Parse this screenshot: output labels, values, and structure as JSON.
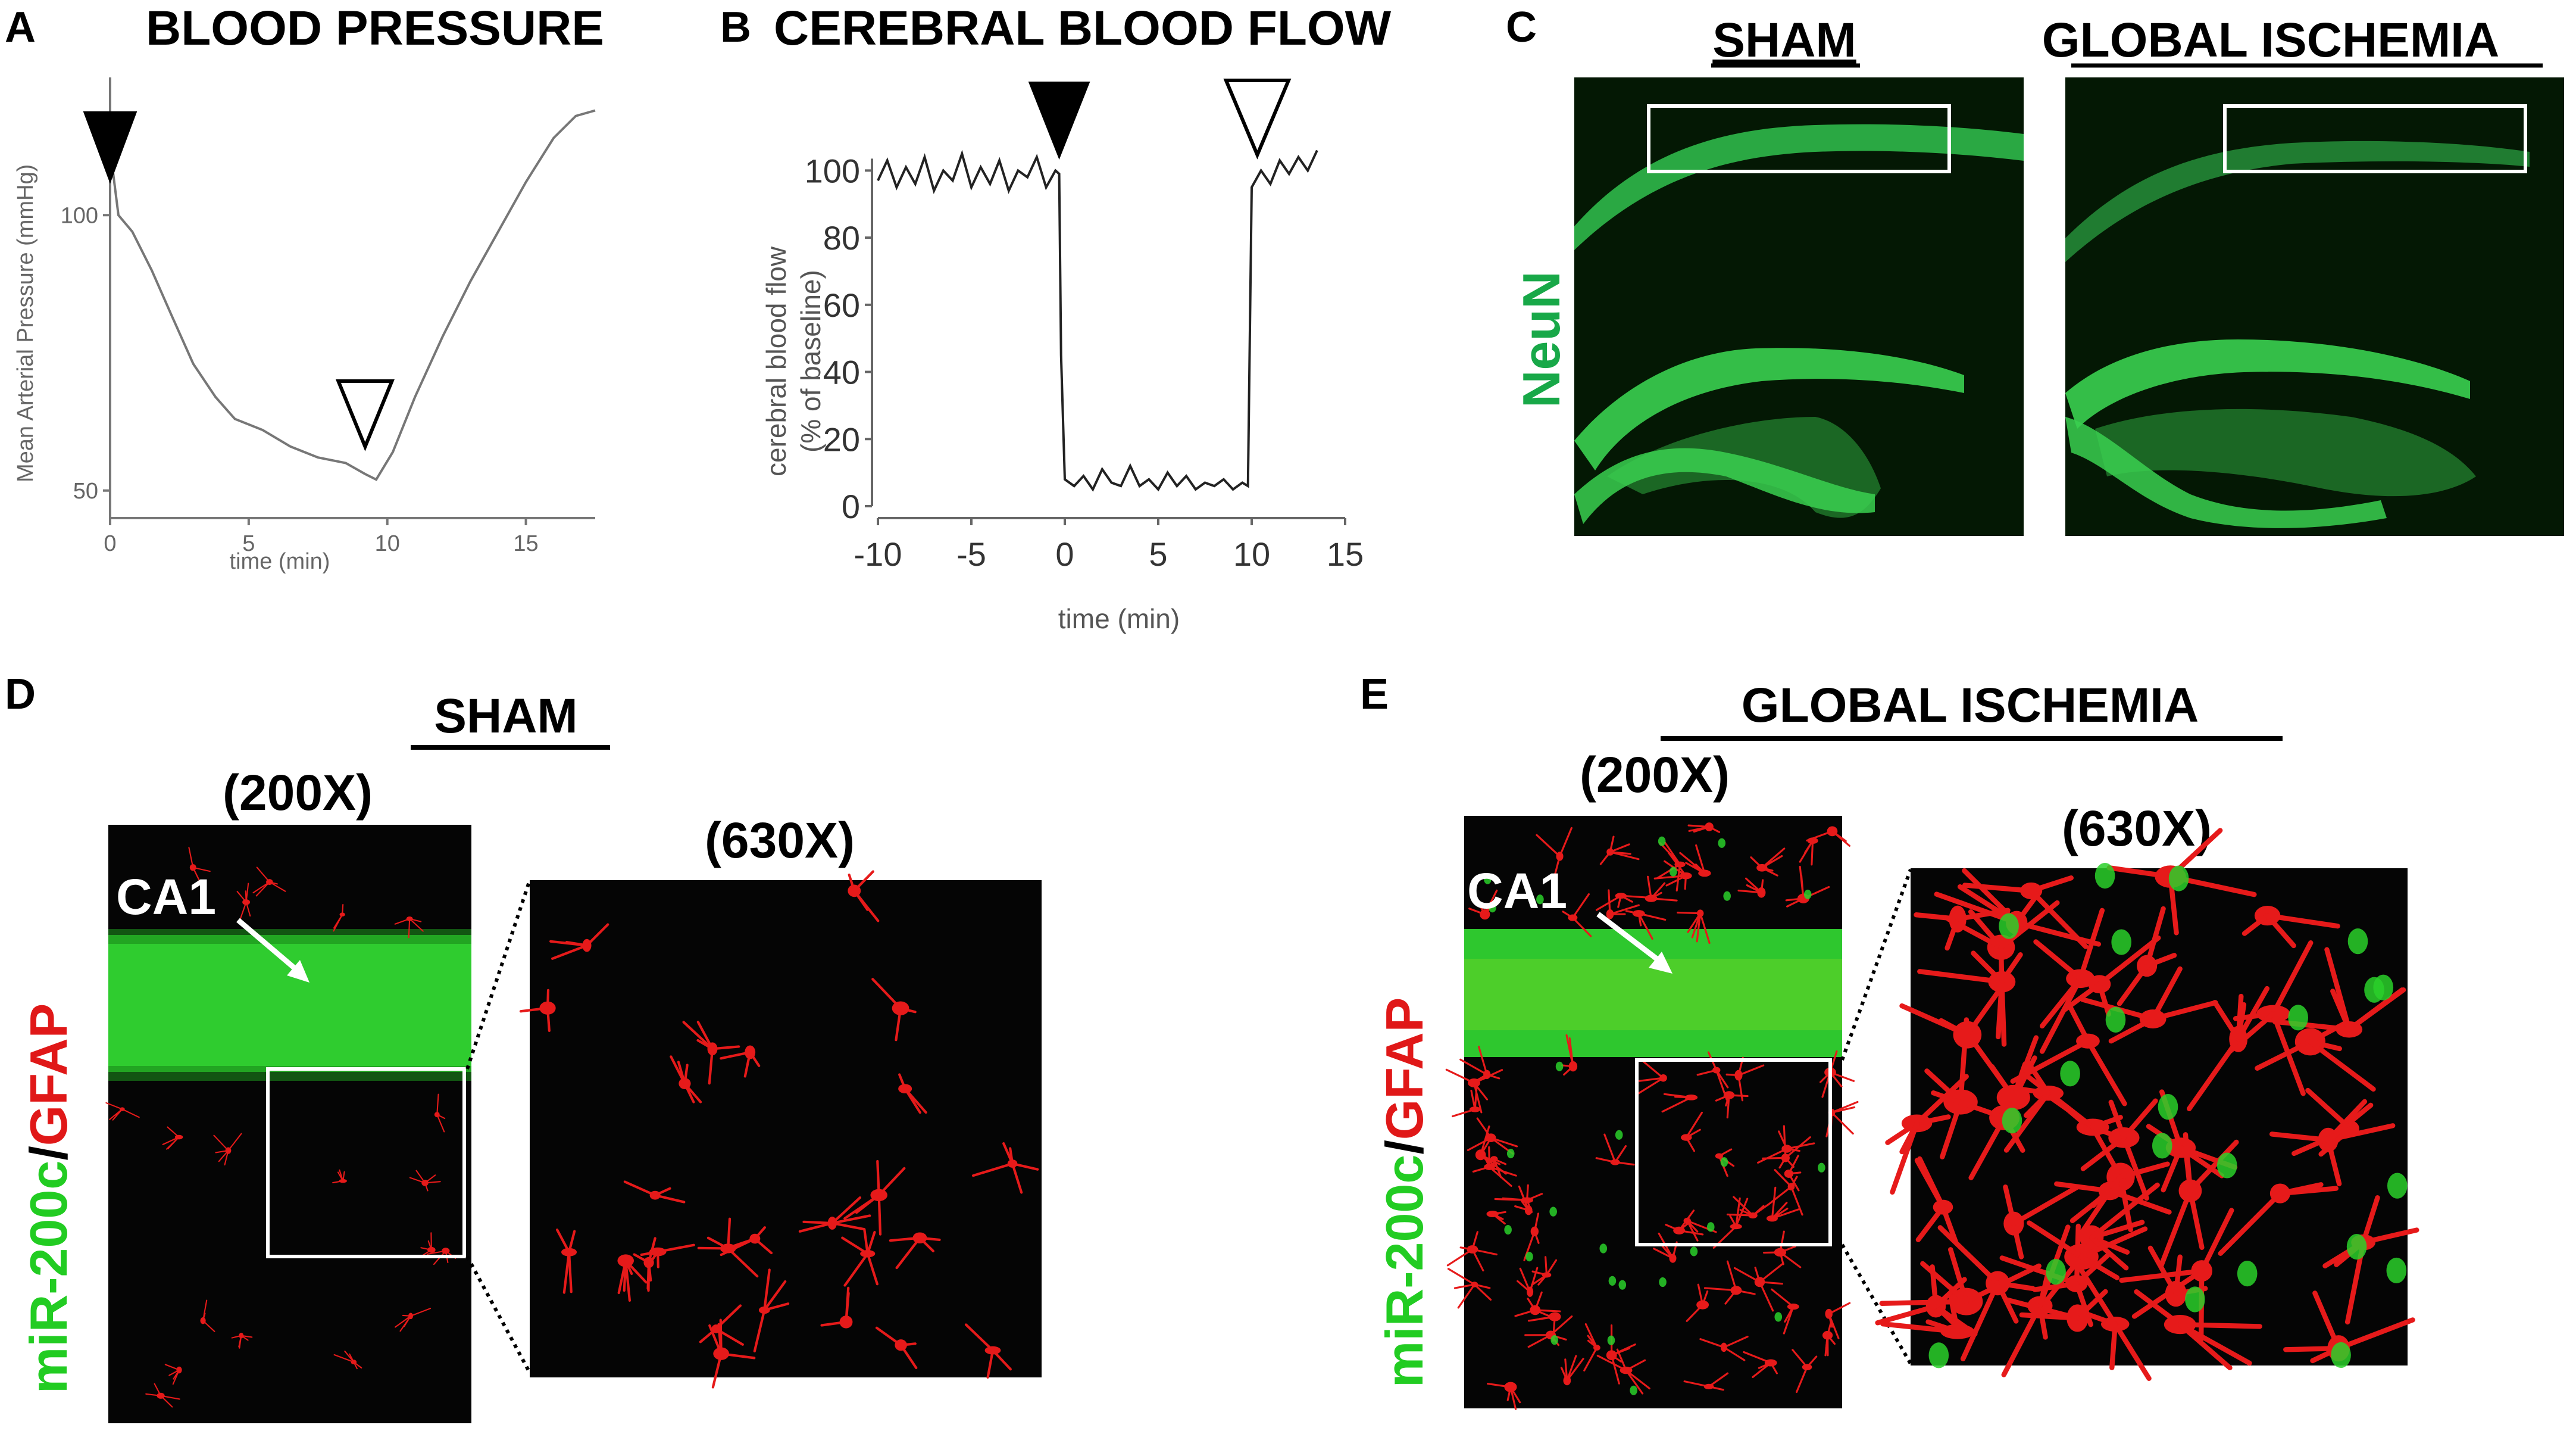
{
  "panels": {
    "A": {
      "letter": "A",
      "title": "BLOOD PRESSURE"
    },
    "B": {
      "letter": "B",
      "title": "CEREBRAL BLOOD FLOW"
    },
    "C": {
      "letter": "C",
      "sham_label": "SHAM",
      "ischemia_label": "GLOBAL ISCHEMIA",
      "stain": "NeuN"
    },
    "D": {
      "letter": "D",
      "title": "SHAM",
      "mag_low": "(200X)",
      "mag_high": "(630X)",
      "region": "CA1",
      "stain_green": "miR-200c",
      "stain_sep": "/",
      "stain_red": "GFAP"
    },
    "E": {
      "letter": "E",
      "title": "GLOBAL ISCHEMIA",
      "mag_low": "(200X)",
      "mag_high": "(630X)",
      "region": "CA1",
      "stain_green": "miR-200c",
      "stain_sep": "/",
      "stain_red": "GFAP"
    }
  },
  "colors": {
    "green": "#22cc22",
    "red": "#e01818",
    "neun": "#18a848",
    "trace": "#222222",
    "trace_light": "#666666"
  },
  "chart_data": [
    {
      "type": "line",
      "title": "BLOOD PRESSURE",
      "xlabel": "time (min)",
      "ylabel": "Mean Arterial Pressure (mmHg)",
      "xlim": [
        0,
        17.5
      ],
      "ylim": [
        45,
        125
      ],
      "xticks": [
        "0",
        "5",
        "10",
        "15"
      ],
      "yticks": [
        "50",
        "100"
      ],
      "series": [
        {
          "x": [
            0,
            0.3,
            0.8,
            1.5,
            2.2,
            3,
            3.8,
            4.5,
            5.5,
            6.5,
            7.5,
            8.5,
            9.2,
            9.6,
            10.2,
            11,
            12,
            13,
            14,
            15,
            16,
            16.8,
            17.5
          ],
          "y": [
            112,
            100,
            97,
            90,
            82,
            73,
            67,
            63,
            61,
            58,
            56,
            55,
            53,
            52,
            57,
            67,
            78,
            88,
            97,
            106,
            114,
            118,
            119
          ]
        }
      ],
      "annotations": [
        "filled-triangle at x=0",
        "open-triangle at x=9.5"
      ]
    },
    {
      "type": "line",
      "title": "CEREBRAL BLOOD FLOW",
      "xlabel": "time (min)",
      "ylabel": "cerebral blood flow\n(% of baseline)",
      "xlim": [
        -10,
        15
      ],
      "ylim": [
        0,
        110
      ],
      "xticks": [
        "-10",
        "-5",
        "0",
        "5",
        "10",
        "15"
      ],
      "yticks": [
        "0",
        "20",
        "40",
        "60",
        "80",
        "100"
      ],
      "series": [
        {
          "x": [
            -10,
            -9.5,
            -9,
            -8.5,
            -8,
            -7.5,
            -7,
            -6.5,
            -6,
            -5.5,
            -5,
            -4.5,
            -4,
            -3.5,
            -3,
            -2.5,
            -2,
            -1.5,
            -1,
            -0.5,
            -0.3,
            -0.2,
            0,
            0.5,
            1,
            1.5,
            2,
            2.5,
            3,
            3.5,
            4,
            4.5,
            5,
            5.5,
            6,
            6.5,
            7,
            7.5,
            8,
            8.5,
            9,
            9.5,
            9.8,
            10,
            10.5,
            11,
            11.5,
            12,
            12.5,
            13,
            13.5
          ],
          "y": [
            97,
            103,
            95,
            101,
            96,
            104,
            94,
            100,
            97,
            105,
            95,
            101,
            96,
            103,
            94,
            100,
            98,
            104,
            95,
            100,
            99,
            45,
            8,
            6,
            9,
            5,
            11,
            7,
            6,
            12,
            6,
            8,
            5,
            10,
            6,
            9,
            5,
            7,
            6,
            8,
            5,
            7,
            6,
            95,
            100,
            96,
            103,
            99,
            104,
            100,
            106
          ]
        }
      ],
      "annotations": [
        "filled-triangle at x=0",
        "open-triangle at x=10"
      ]
    }
  ]
}
